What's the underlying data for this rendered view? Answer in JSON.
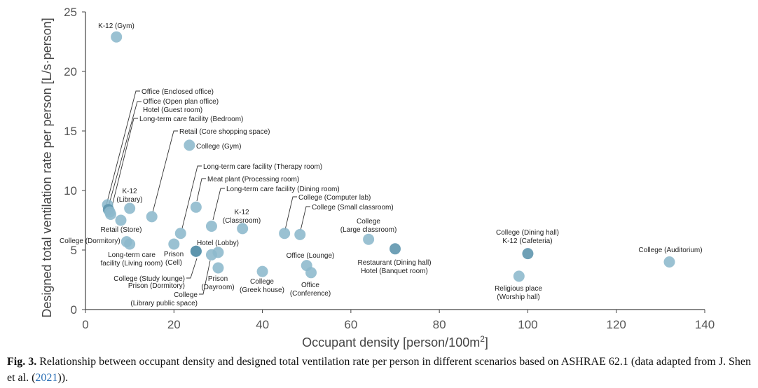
{
  "chart_data": {
    "type": "scatter",
    "xlabel": "Occupant density [person/100m",
    "xlabel_sup": "2",
    "xlabel_end": "]",
    "ylabel": "Designed total ventilation rate per person [L/s·person]",
    "xlim": [
      0,
      140
    ],
    "ylim": [
      0,
      25
    ],
    "xticks": [
      0,
      20,
      40,
      60,
      80,
      100,
      120,
      140
    ],
    "yticks": [
      0,
      5,
      10,
      15,
      20,
      25
    ],
    "colors": {
      "light": "#8cb8cc",
      "dark": "#5b93ac"
    },
    "points": [
      {
        "x": 7,
        "y": 22.9,
        "shade": "light",
        "label": [
          "K-12 (Gym)"
        ]
      },
      {
        "x": 23.5,
        "y": 13.8,
        "shade": "light",
        "label": [
          "College (Gym)"
        ]
      },
      {
        "x": 5,
        "y": 8.8,
        "shade": "light",
        "label": [
          "Office (Enclosed office)"
        ]
      },
      {
        "x": 5.2,
        "y": 8.4,
        "shade": "dark",
        "label": [
          "Office (Open plan office)"
        ]
      },
      {
        "x": 5.5,
        "y": 8.2,
        "shade": "light",
        "label": [
          "Hotel (Guest room)"
        ]
      },
      {
        "x": 5.7,
        "y": 8.0,
        "shade": "light",
        "label": [
          "Long-term care facility (Bedroom)"
        ]
      },
      {
        "x": 15,
        "y": 7.8,
        "shade": "light",
        "label": [
          "Retail (Core shopping space)"
        ]
      },
      {
        "x": 10,
        "y": 8.5,
        "shade": "light",
        "label": [
          "K-12",
          "(Library)"
        ]
      },
      {
        "x": 8,
        "y": 7.5,
        "shade": "light",
        "label": [
          "Retail (Store)"
        ]
      },
      {
        "x": 9.3,
        "y": 5.7,
        "shade": "light",
        "label": [
          "College (Dormitory)"
        ]
      },
      {
        "x": 10,
        "y": 5.5,
        "shade": "light",
        "label": [
          "Long-term care",
          "facility (Living room)"
        ]
      },
      {
        "x": 20,
        "y": 5.5,
        "shade": "light",
        "label": [
          "Prison",
          "(Cell)"
        ]
      },
      {
        "x": 21.5,
        "y": 6.4,
        "shade": "light",
        "label": [
          "Long-term care facility (Therapy room)"
        ]
      },
      {
        "x": 25,
        "y": 4.9,
        "shade": "dark",
        "label": [
          "College (Study lounge)"
        ]
      },
      {
        "x": 25,
        "y": 4.9,
        "shade": "dark",
        "label": [
          "Prison (Dormitory)"
        ]
      },
      {
        "x": 25,
        "y": 8.6,
        "shade": "light",
        "label": [
          "Meat plant (Processing room)"
        ]
      },
      {
        "x": 28.5,
        "y": 4.6,
        "shade": "light",
        "label": [
          "College",
          "(Library public space)"
        ]
      },
      {
        "x": 28.5,
        "y": 7.0,
        "shade": "light",
        "label": [
          "Long-term care facility (Dining room)"
        ]
      },
      {
        "x": 30,
        "y": 4.8,
        "shade": "light",
        "label": [
          "Hotel (Lobby)"
        ]
      },
      {
        "x": 30,
        "y": 3.5,
        "shade": "light",
        "label": [
          "Prison",
          "(Dayroom)"
        ]
      },
      {
        "x": 35.5,
        "y": 6.8,
        "shade": "light",
        "label": [
          "K-12",
          "(Classroom)"
        ]
      },
      {
        "x": 40,
        "y": 3.2,
        "shade": "light",
        "label": [
          "College",
          "(Greek house)"
        ]
      },
      {
        "x": 45,
        "y": 6.4,
        "shade": "light",
        "label": [
          "College (Computer lab)"
        ]
      },
      {
        "x": 48.5,
        "y": 6.3,
        "shade": "light",
        "label": [
          "College (Small classroom)"
        ]
      },
      {
        "x": 50,
        "y": 3.7,
        "shade": "light",
        "label": [
          "Office (Lounge)"
        ]
      },
      {
        "x": 51,
        "y": 3.1,
        "shade": "light",
        "label": [
          "Office",
          "(Conference)"
        ]
      },
      {
        "x": 64,
        "y": 5.9,
        "shade": "light",
        "label": [
          "College",
          "(Large classroom)"
        ]
      },
      {
        "x": 70,
        "y": 5.1,
        "shade": "dark",
        "label": [
          "Restaurant (Dining hall)",
          "Hotel (Banquet room)"
        ]
      },
      {
        "x": 98,
        "y": 2.8,
        "shade": "light",
        "label": [
          "Religious place",
          "(Worship hall)"
        ]
      },
      {
        "x": 100,
        "y": 4.7,
        "shade": "dark",
        "label": [
          "College (Dining hall)",
          "K-12 (Cafeteria)"
        ]
      },
      {
        "x": 132,
        "y": 4.0,
        "shade": "light",
        "label": [
          "College (Auditorium)"
        ]
      }
    ]
  },
  "caption": {
    "fig": "Fig. 3.",
    "text": " Relationship between occupant density and designed total ventilation rate per person in different scenarios based on ASHRAE 62.1 (data adapted from J. Shen et al. (",
    "ref": "2021",
    "end": "))."
  }
}
